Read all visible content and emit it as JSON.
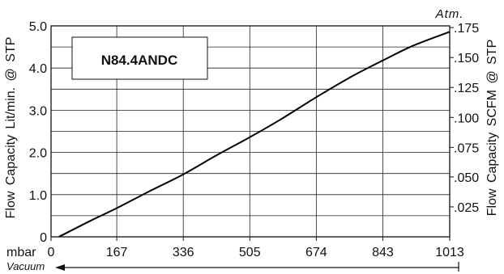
{
  "chart_data": {
    "type": "line",
    "title": "N84.4ANDC",
    "ylabel_left": "Flow Capacity Lit/min. @ STP",
    "ylabel_right": "Flow Capacity SCFM @ STP",
    "x_unit_label": "mbar",
    "x_direction_label": "Vacuum",
    "x_end_label": "Atm.",
    "xlim": [
      0,
      1013
    ],
    "ylim_left": [
      0,
      5.0
    ],
    "x_ticks": [
      "0",
      "167",
      "336",
      "505",
      "674",
      "843",
      "1013"
    ],
    "x_tick_values": [
      0,
      167,
      336,
      505,
      674,
      843,
      1013
    ],
    "y_ticks_left": [
      "0",
      "1.0",
      "2.0",
      "3.0",
      "4.0",
      "5.0"
    ],
    "y_tick_values_left": [
      0,
      1,
      2,
      3,
      4,
      5
    ],
    "y_ticks_right": [
      ".025",
      ".050",
      ".075",
      ".100",
      ".125",
      ".150",
      ".175"
    ],
    "y_tick_values_right_in_left_units": [
      0.71,
      1.42,
      2.12,
      2.83,
      3.54,
      4.25,
      4.96
    ],
    "grid": true,
    "series": [
      {
        "x": [
          20,
          100,
          167,
          250,
          336,
          420,
          505,
          590,
          674,
          760,
          843,
          920,
          1013
        ],
        "y": [
          0.0,
          0.38,
          0.68,
          1.08,
          1.48,
          1.93,
          2.36,
          2.82,
          3.31,
          3.78,
          4.18,
          4.53,
          4.86
        ]
      }
    ]
  }
}
